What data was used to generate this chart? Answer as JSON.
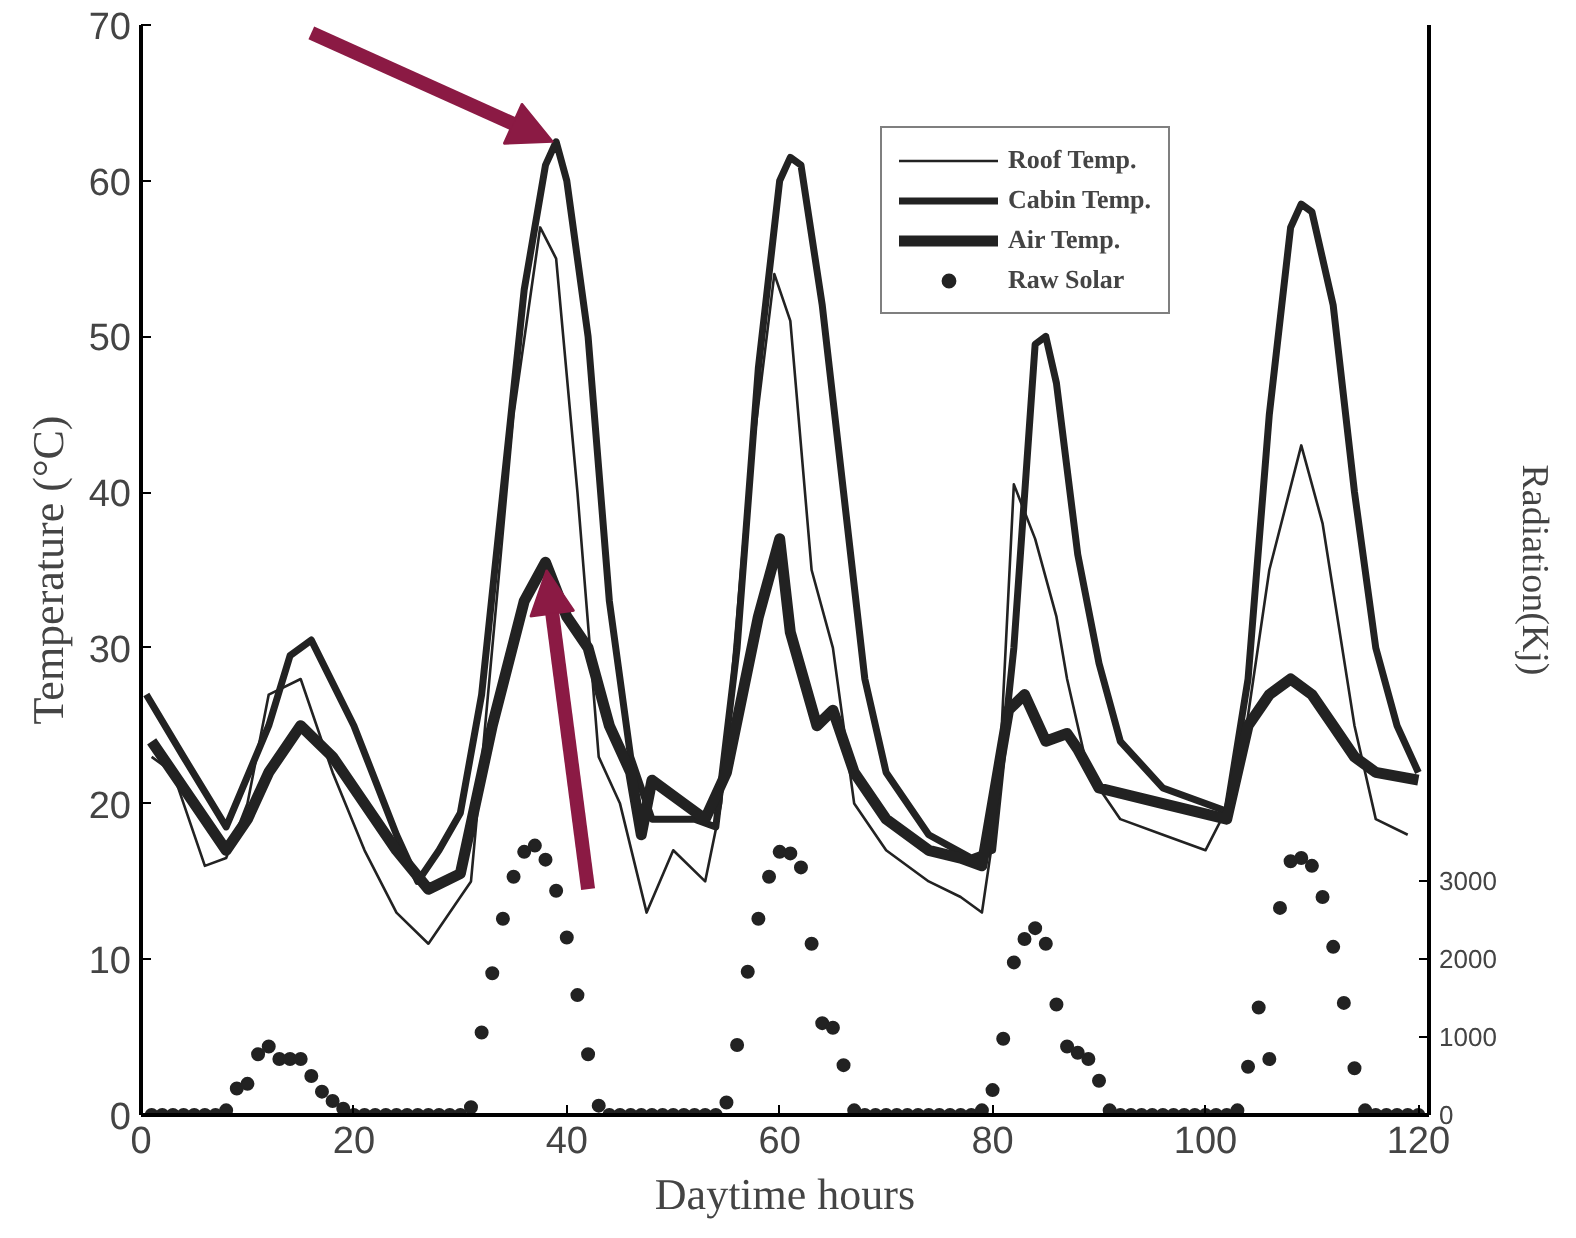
{
  "chart_data": {
    "type": "line",
    "xlabel": "Daytime hours",
    "ylabel": "Temperature (°C)",
    "y2label": "Radiation(Kj)",
    "xlim": [
      0,
      121
    ],
    "xticks": [
      0,
      20,
      40,
      60,
      80,
      100,
      120
    ],
    "ylim": [
      0,
      70
    ],
    "yticks": [
      0,
      10,
      20,
      30,
      40,
      50,
      60,
      70
    ],
    "y2lim": [
      0,
      14000
    ],
    "y2ticks": [
      0,
      1000,
      2000,
      3000
    ],
    "grid": false,
    "legend": "top right",
    "series": [
      {
        "name": "Roof Temp.",
        "color": "#222222",
        "x": [
          1,
          3,
          6,
          8,
          10,
          12,
          15,
          18,
          21,
          24,
          27,
          30,
          31,
          33,
          35,
          37.5,
          39,
          41,
          43,
          45,
          47.5,
          50,
          53,
          54.5,
          57,
          59.5,
          61,
          63,
          65,
          67,
          70,
          74,
          77,
          79,
          80.5,
          82,
          84,
          86,
          87,
          89,
          92,
          96,
          100,
          103,
          106,
          109,
          111,
          114,
          116,
          119
        ],
        "values": [
          23,
          22,
          16,
          16.5,
          20,
          27,
          28,
          22,
          17,
          13,
          11,
          14,
          15,
          30,
          45,
          57,
          55,
          40,
          23,
          20,
          13,
          17,
          15,
          20,
          40,
          54,
          51,
          35,
          30,
          20,
          17,
          15,
          14,
          13,
          20,
          40.5,
          37,
          32,
          28,
          22,
          19,
          18,
          17,
          21,
          35,
          43,
          38,
          25,
          19,
          18
        ]
      },
      {
        "name": "Cabin Temp.",
        "color": "#222222",
        "x": [
          0.5,
          4,
          8,
          12,
          14,
          16,
          20,
          24,
          26,
          28,
          30,
          32,
          34,
          36,
          38,
          39,
          40,
          42,
          44,
          46,
          48,
          52,
          54,
          56,
          58,
          60,
          61,
          62,
          64,
          66,
          68,
          70,
          74,
          78,
          80,
          82,
          84,
          85,
          86,
          88,
          90,
          92,
          96,
          100,
          102,
          104,
          106,
          108,
          109,
          110,
          112,
          114,
          116,
          118,
          120
        ],
        "values": [
          27,
          23,
          18.5,
          25,
          29.5,
          30.5,
          25,
          18,
          15,
          17,
          19.4,
          27,
          40,
          53,
          61,
          62.5,
          60,
          50,
          33,
          23,
          19,
          19,
          18.5,
          30,
          48,
          60,
          61.5,
          61,
          52,
          40,
          28,
          22,
          18,
          16.5,
          17,
          30,
          49.5,
          50,
          47,
          36,
          29,
          24,
          21,
          20,
          19.5,
          28,
          45,
          57,
          58.5,
          58,
          52,
          40,
          30,
          25,
          22
        ]
      },
      {
        "name": "Air Temp.",
        "color": "#222222",
        "x": [
          1,
          4,
          8,
          10,
          12,
          15,
          18,
          21,
          24,
          27,
          30,
          33,
          36,
          38,
          40,
          42,
          44,
          46,
          47,
          48,
          51,
          53,
          55,
          58,
          60,
          61,
          63.5,
          65,
          67,
          70,
          74,
          77,
          79,
          81.5,
          83,
          85,
          87,
          88,
          90,
          96,
          102,
          104,
          106,
          108,
          110,
          112,
          114,
          116,
          120
        ],
        "values": [
          24,
          21,
          17,
          19,
          22,
          25,
          23,
          20,
          17,
          14.5,
          15.5,
          25,
          33,
          35.5,
          32,
          30,
          25,
          22,
          18,
          21.5,
          20,
          19,
          22,
          32,
          37,
          31,
          25,
          26,
          22,
          19,
          17,
          16.5,
          16,
          26,
          27,
          24,
          24.5,
          23.5,
          21,
          20,
          19,
          25,
          27,
          28,
          27,
          25,
          23,
          22,
          21.5
        ]
      },
      {
        "name": "Raw Solar",
        "type": "scatter",
        "axis": "y2",
        "marker": "circle",
        "color": "#222222",
        "x": [
          1,
          2,
          3,
          4,
          5,
          6,
          7,
          8,
          9,
          10,
          11,
          12,
          13,
          14,
          15,
          16,
          17,
          18,
          19,
          20,
          21,
          22,
          23,
          24,
          25,
          26,
          27,
          28,
          29,
          30,
          31,
          32,
          33,
          34,
          35,
          36,
          37,
          38,
          39,
          40,
          41,
          42,
          43,
          44,
          45,
          46,
          47,
          48,
          49,
          50,
          51,
          52,
          53,
          54,
          55,
          56,
          57,
          58,
          59,
          60,
          61,
          62,
          63,
          64,
          65,
          66,
          67,
          68,
          69,
          70,
          71,
          72,
          73,
          74,
          75,
          76,
          77,
          78,
          79,
          80,
          81,
          82,
          83,
          84,
          85,
          86,
          87,
          88,
          89,
          90,
          91,
          92,
          93,
          94,
          95,
          96,
          97,
          98,
          99,
          100,
          101,
          102,
          103,
          104,
          105,
          106,
          107,
          108,
          109,
          110,
          111,
          112,
          113,
          114,
          115,
          116,
          117,
          118,
          119,
          120
        ],
        "values": [
          0,
          0,
          0,
          0,
          0,
          0,
          0,
          60,
          340,
          400,
          780,
          880,
          720,
          720,
          720,
          500,
          300,
          180,
          80,
          0,
          0,
          0,
          0,
          0,
          0,
          0,
          0,
          0,
          0,
          0,
          100,
          1060,
          1820,
          2520,
          3060,
          3380,
          3460,
          3280,
          2880,
          2280,
          1540,
          780,
          120,
          0,
          0,
          0,
          0,
          0,
          0,
          0,
          0,
          0,
          0,
          0,
          160,
          900,
          1840,
          2520,
          3060,
          3380,
          3360,
          3180,
          2200,
          1180,
          1120,
          640,
          60,
          0,
          0,
          0,
          0,
          0,
          0,
          0,
          0,
          0,
          0,
          0,
          60,
          320,
          980,
          1960,
          2260,
          2400,
          2200,
          1420,
          880,
          800,
          720,
          440,
          60,
          0,
          0,
          0,
          0,
          0,
          0,
          0,
          0,
          0,
          0,
          0,
          60,
          620,
          1380,
          720,
          2660,
          3260,
          3300,
          3200,
          2800,
          2160,
          1440,
          600,
          60,
          0,
          0,
          0,
          0,
          0
        ]
      }
    ]
  }
}
